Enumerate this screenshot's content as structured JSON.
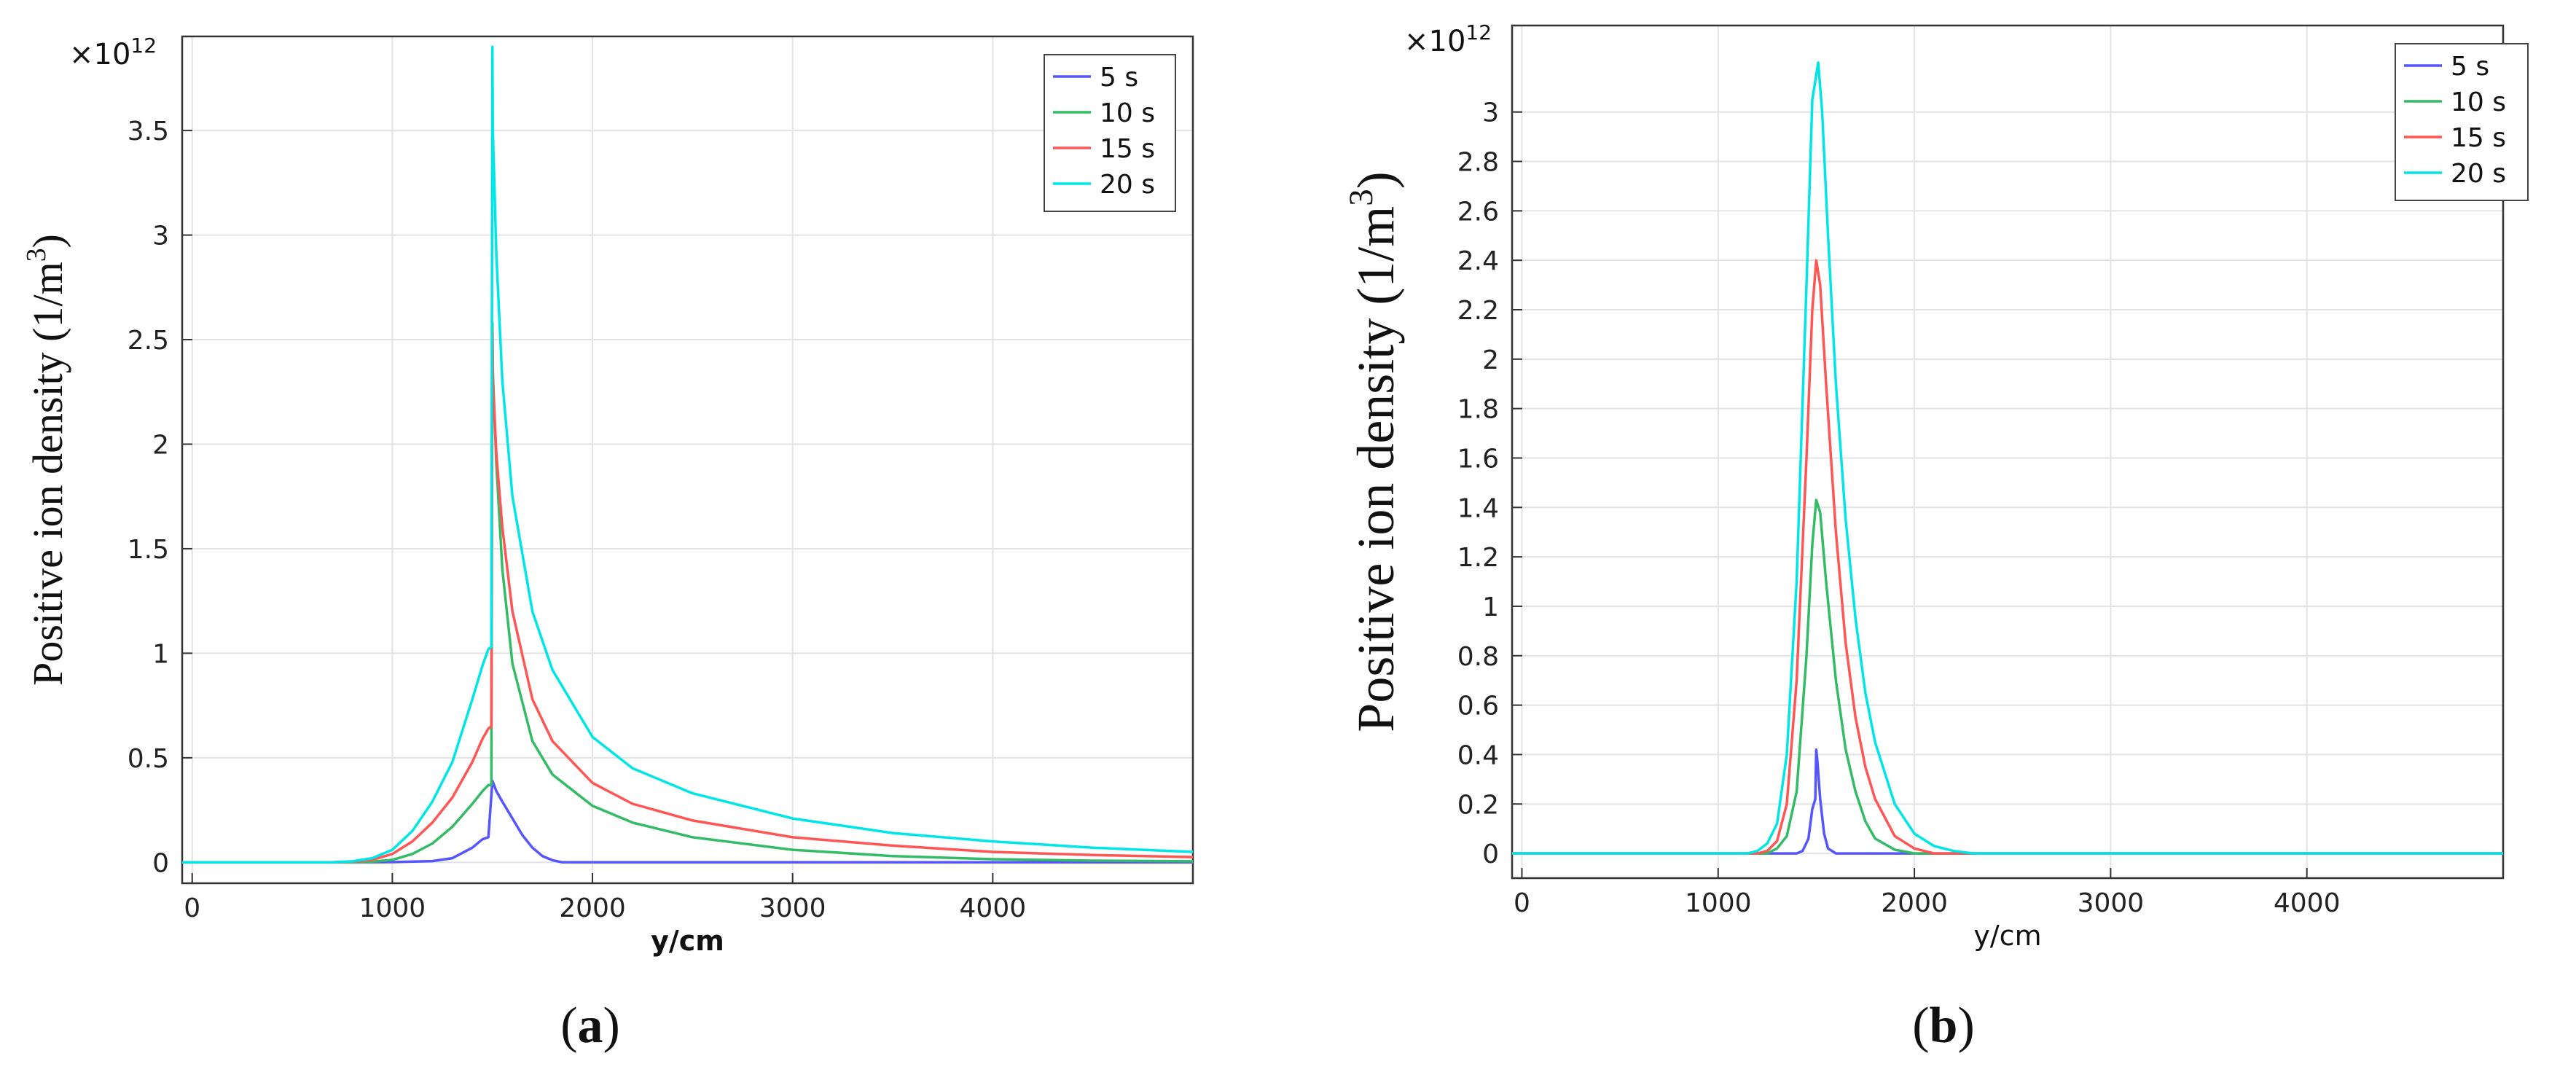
{
  "figure": {
    "panels": [
      {
        "caption_prefix": "(",
        "caption_letter": "a",
        "caption_suffix": ")",
        "y_label_main": "Positive ion density (1/m",
        "y_label_sup": "3",
        "y_label_close": ")",
        "x_label": "y/cm",
        "exponent_base": "×10",
        "exponent_power": "12"
      },
      {
        "caption_prefix": "(",
        "caption_letter": "b",
        "caption_suffix": ")",
        "y_label_main": "Positive ion density (1/m",
        "y_label_sup": "3",
        "y_label_close": ")",
        "x_label": "y/cm",
        "exponent_base": "×10",
        "exponent_power": "12"
      }
    ]
  },
  "chart_data": [
    {
      "type": "line",
      "xlabel": "y/cm",
      "ylabel": "Positive ion density (1/m3)",
      "multiplier": "×10^12",
      "xlim": [
        -50,
        5000
      ],
      "ylim": [
        -0.1,
        3.95
      ],
      "xticks": [
        0,
        1000,
        2000,
        3000,
        4000
      ],
      "xtick_labels": [
        "0",
        "1000",
        "2000",
        "3000",
        "4000"
      ],
      "yticks": [
        0,
        0.5,
        1,
        1.5,
        2,
        2.5,
        3,
        3.5
      ],
      "ytick_labels": [
        "0",
        "0.5",
        "1",
        "1.5",
        "2",
        "2.5",
        "3",
        "3.5"
      ],
      "grid": true,
      "legend_position": "top-right",
      "series": [
        {
          "name": "5 s",
          "color": "#5555ff",
          "x": [
            -50,
            800,
            1000,
            1200,
            1300,
            1400,
            1450,
            1480,
            1500,
            1520,
            1550,
            1600,
            1650,
            1700,
            1750,
            1800,
            1850,
            2000,
            3000,
            5000
          ],
          "y": [
            0,
            0,
            0.001,
            0.006,
            0.02,
            0.07,
            0.11,
            0.12,
            0.39,
            0.34,
            0.29,
            0.21,
            0.13,
            0.07,
            0.03,
            0.01,
            0.0,
            0,
            0,
            0
          ]
        },
        {
          "name": "10 s",
          "color": "#33bb66",
          "x": [
            -50,
            800,
            900,
            1000,
            1100,
            1200,
            1300,
            1400,
            1450,
            1480,
            1495,
            1500,
            1502,
            1520,
            1550,
            1600,
            1700,
            1800,
            2000,
            2200,
            2500,
            3000,
            3500,
            4000,
            4500,
            5000
          ],
          "y": [
            0,
            0,
            0.003,
            0.012,
            0.04,
            0.09,
            0.17,
            0.28,
            0.34,
            0.37,
            0.37,
            2.58,
            2.35,
            1.9,
            1.4,
            0.95,
            0.58,
            0.42,
            0.27,
            0.19,
            0.12,
            0.06,
            0.03,
            0.015,
            0.008,
            0.005
          ]
        },
        {
          "name": "15 s",
          "color": "#ff5555",
          "x": [
            -50,
            700,
            800,
            900,
            1000,
            1100,
            1200,
            1300,
            1400,
            1450,
            1480,
            1495,
            1500,
            1502,
            1520,
            1550,
            1600,
            1700,
            1800,
            2000,
            2200,
            2500,
            3000,
            3500,
            4000,
            4500,
            5000
          ],
          "y": [
            0,
            0,
            0.003,
            0.012,
            0.04,
            0.1,
            0.19,
            0.31,
            0.48,
            0.59,
            0.64,
            0.65,
            2.55,
            2.3,
            1.95,
            1.6,
            1.2,
            0.78,
            0.58,
            0.38,
            0.28,
            0.2,
            0.12,
            0.08,
            0.05,
            0.035,
            0.025
          ]
        },
        {
          "name": "20 s",
          "color": "#00e5e5",
          "x": [
            -50,
            700,
            800,
            900,
            1000,
            1100,
            1200,
            1300,
            1400,
            1450,
            1480,
            1495,
            1500,
            1502,
            1520,
            1550,
            1600,
            1700,
            1800,
            2000,
            2200,
            2500,
            3000,
            3500,
            4000,
            4500,
            5000
          ],
          "y": [
            0,
            0,
            0.005,
            0.02,
            0.06,
            0.15,
            0.29,
            0.48,
            0.78,
            0.94,
            1.02,
            1.03,
            3.9,
            3.5,
            2.9,
            2.3,
            1.75,
            1.2,
            0.92,
            0.6,
            0.45,
            0.33,
            0.21,
            0.14,
            0.1,
            0.07,
            0.05
          ]
        }
      ]
    },
    {
      "type": "line",
      "xlabel": "y/cm",
      "ylabel": "Positive ion density (1/m3)",
      "multiplier": "×10^12",
      "xlim": [
        -50,
        5000
      ],
      "ylim": [
        -0.1,
        3.35
      ],
      "xticks": [
        0,
        1000,
        2000,
        3000,
        4000
      ],
      "xtick_labels": [
        "0",
        "1000",
        "2000",
        "3000",
        "4000"
      ],
      "yticks": [
        0,
        0.2,
        0.4,
        0.6,
        0.8,
        1,
        1.2,
        1.4,
        1.6,
        1.8,
        2,
        2.2,
        2.4,
        2.6,
        2.8,
        3
      ],
      "ytick_labels": [
        "0",
        "0.2",
        "0.4",
        "0.6",
        "0.8",
        "1",
        "1.2",
        "1.4",
        "1.6",
        "1.8",
        "2",
        "2.2",
        "2.4",
        "2.6",
        "2.8",
        "3"
      ],
      "grid": true,
      "legend_position": "top-right",
      "series": [
        {
          "name": "5 s",
          "color": "#5555ff",
          "x": [
            -50,
            1400,
            1430,
            1460,
            1480,
            1495,
            1500,
            1505,
            1520,
            1540,
            1560,
            1600,
            5000
          ],
          "y": [
            0,
            0,
            0.01,
            0.06,
            0.18,
            0.22,
            0.42,
            0.38,
            0.22,
            0.08,
            0.02,
            0,
            0
          ]
        },
        {
          "name": "10 s",
          "color": "#33bb66",
          "x": [
            -50,
            1250,
            1300,
            1350,
            1400,
            1450,
            1480,
            1500,
            1520,
            1550,
            1600,
            1650,
            1700,
            1750,
            1800,
            1900,
            2000,
            5000
          ],
          "y": [
            0,
            0,
            0.02,
            0.07,
            0.25,
            0.8,
            1.25,
            1.43,
            1.38,
            1.1,
            0.7,
            0.42,
            0.25,
            0.13,
            0.06,
            0.015,
            0,
            0
          ]
        },
        {
          "name": "15 s",
          "color": "#ff5555",
          "x": [
            -50,
            1200,
            1250,
            1300,
            1350,
            1400,
            1450,
            1480,
            1500,
            1520,
            1550,
            1600,
            1650,
            1700,
            1750,
            1800,
            1900,
            2000,
            2100,
            5000
          ],
          "y": [
            0,
            0,
            0.01,
            0.05,
            0.2,
            0.7,
            1.6,
            2.2,
            2.4,
            2.3,
            1.9,
            1.3,
            0.85,
            0.55,
            0.35,
            0.22,
            0.07,
            0.02,
            0,
            0
          ]
        },
        {
          "name": "20 s",
          "color": "#00e5e5",
          "x": [
            -50,
            1150,
            1200,
            1250,
            1300,
            1350,
            1400,
            1450,
            1480,
            1500,
            1510,
            1530,
            1560,
            1600,
            1650,
            1700,
            1750,
            1800,
            1900,
            2000,
            2100,
            2200,
            2300,
            5000
          ],
          "y": [
            0,
            0,
            0.01,
            0.04,
            0.12,
            0.4,
            1.1,
            2.3,
            3.05,
            3.15,
            3.2,
            3.0,
            2.5,
            1.9,
            1.35,
            0.95,
            0.65,
            0.45,
            0.2,
            0.08,
            0.03,
            0.01,
            0,
            0
          ]
        }
      ]
    }
  ]
}
